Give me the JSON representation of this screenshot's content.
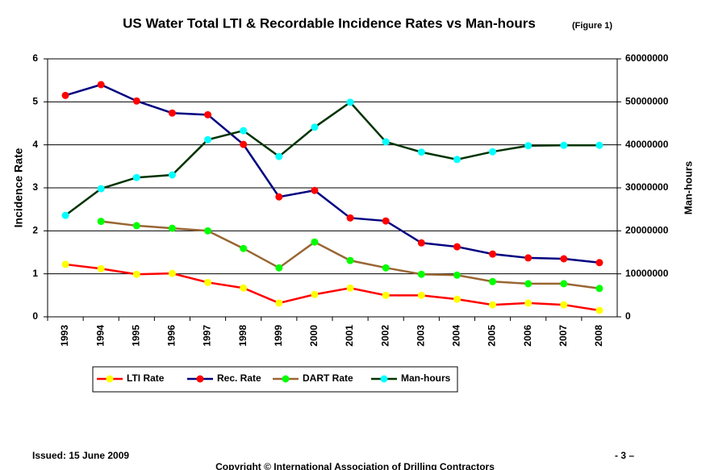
{
  "chart_data": {
    "type": "line",
    "title": "US Water Total LTI & Recordable Incidence Rates vs Man-hours",
    "title_note": "(Figure 1)",
    "y_label": "Incidence Rate",
    "y2_label": "Man-hours",
    "categories": [
      "1993",
      "1994",
      "1995",
      "1996",
      "1997",
      "1998",
      "1999",
      "2000",
      "2001",
      "2002",
      "2003",
      "2004",
      "2005",
      "2006",
      "2007",
      "2008"
    ],
    "series": [
      {
        "name": "LTI Rate",
        "color": "#ff0000",
        "marker_color": "#ffff00",
        "values": [
          1.22,
          1.12,
          0.99,
          1.01,
          0.8,
          0.67,
          0.32,
          0.52,
          0.67,
          0.5,
          0.5,
          0.41,
          0.28,
          0.32,
          0.28,
          0.15
        ]
      },
      {
        "name": "Rec. Rate",
        "color": "#000080",
        "marker_color": "#ff0000",
        "values": [
          5.15,
          5.4,
          5.02,
          4.74,
          4.7,
          4.01,
          2.79,
          2.94,
          2.3,
          2.23,
          1.72,
          1.63,
          1.46,
          1.37,
          1.35,
          1.26
        ]
      },
      {
        "name": "DART Rate",
        "color": "#996633",
        "marker_color": "#00ff00",
        "values": [
          null,
          2.22,
          2.12,
          2.06,
          2.0,
          1.59,
          1.14,
          1.74,
          1.31,
          1.14,
          0.99,
          0.97,
          0.82,
          0.77,
          0.77,
          0.66
        ]
      },
      {
        "name": "Man-hours",
        "color": "#003300",
        "marker_color": "#00ffff",
        "axis": "y2",
        "values": [
          23600000,
          29800000,
          32400000,
          33000000,
          41200000,
          43300000,
          37300000,
          44100000,
          49900000,
          40700000,
          38300000,
          36600000,
          38400000,
          39800000,
          39900000,
          39900000
        ]
      }
    ],
    "ylim": [
      0,
      6
    ],
    "yticks": [
      0,
      1,
      2,
      3,
      4,
      5,
      6
    ],
    "y2lim": [
      0,
      60000000
    ],
    "y2ticks": [
      0,
      10000000,
      20000000,
      30000000,
      40000000,
      50000000,
      60000000
    ],
    "grid": true,
    "legend": "bottom"
  },
  "page": {
    "issued": "Issued:  15 June 2009",
    "page_number": "- 3 –",
    "copyright": "Copyright © International Association of Drilling Contractors"
  }
}
